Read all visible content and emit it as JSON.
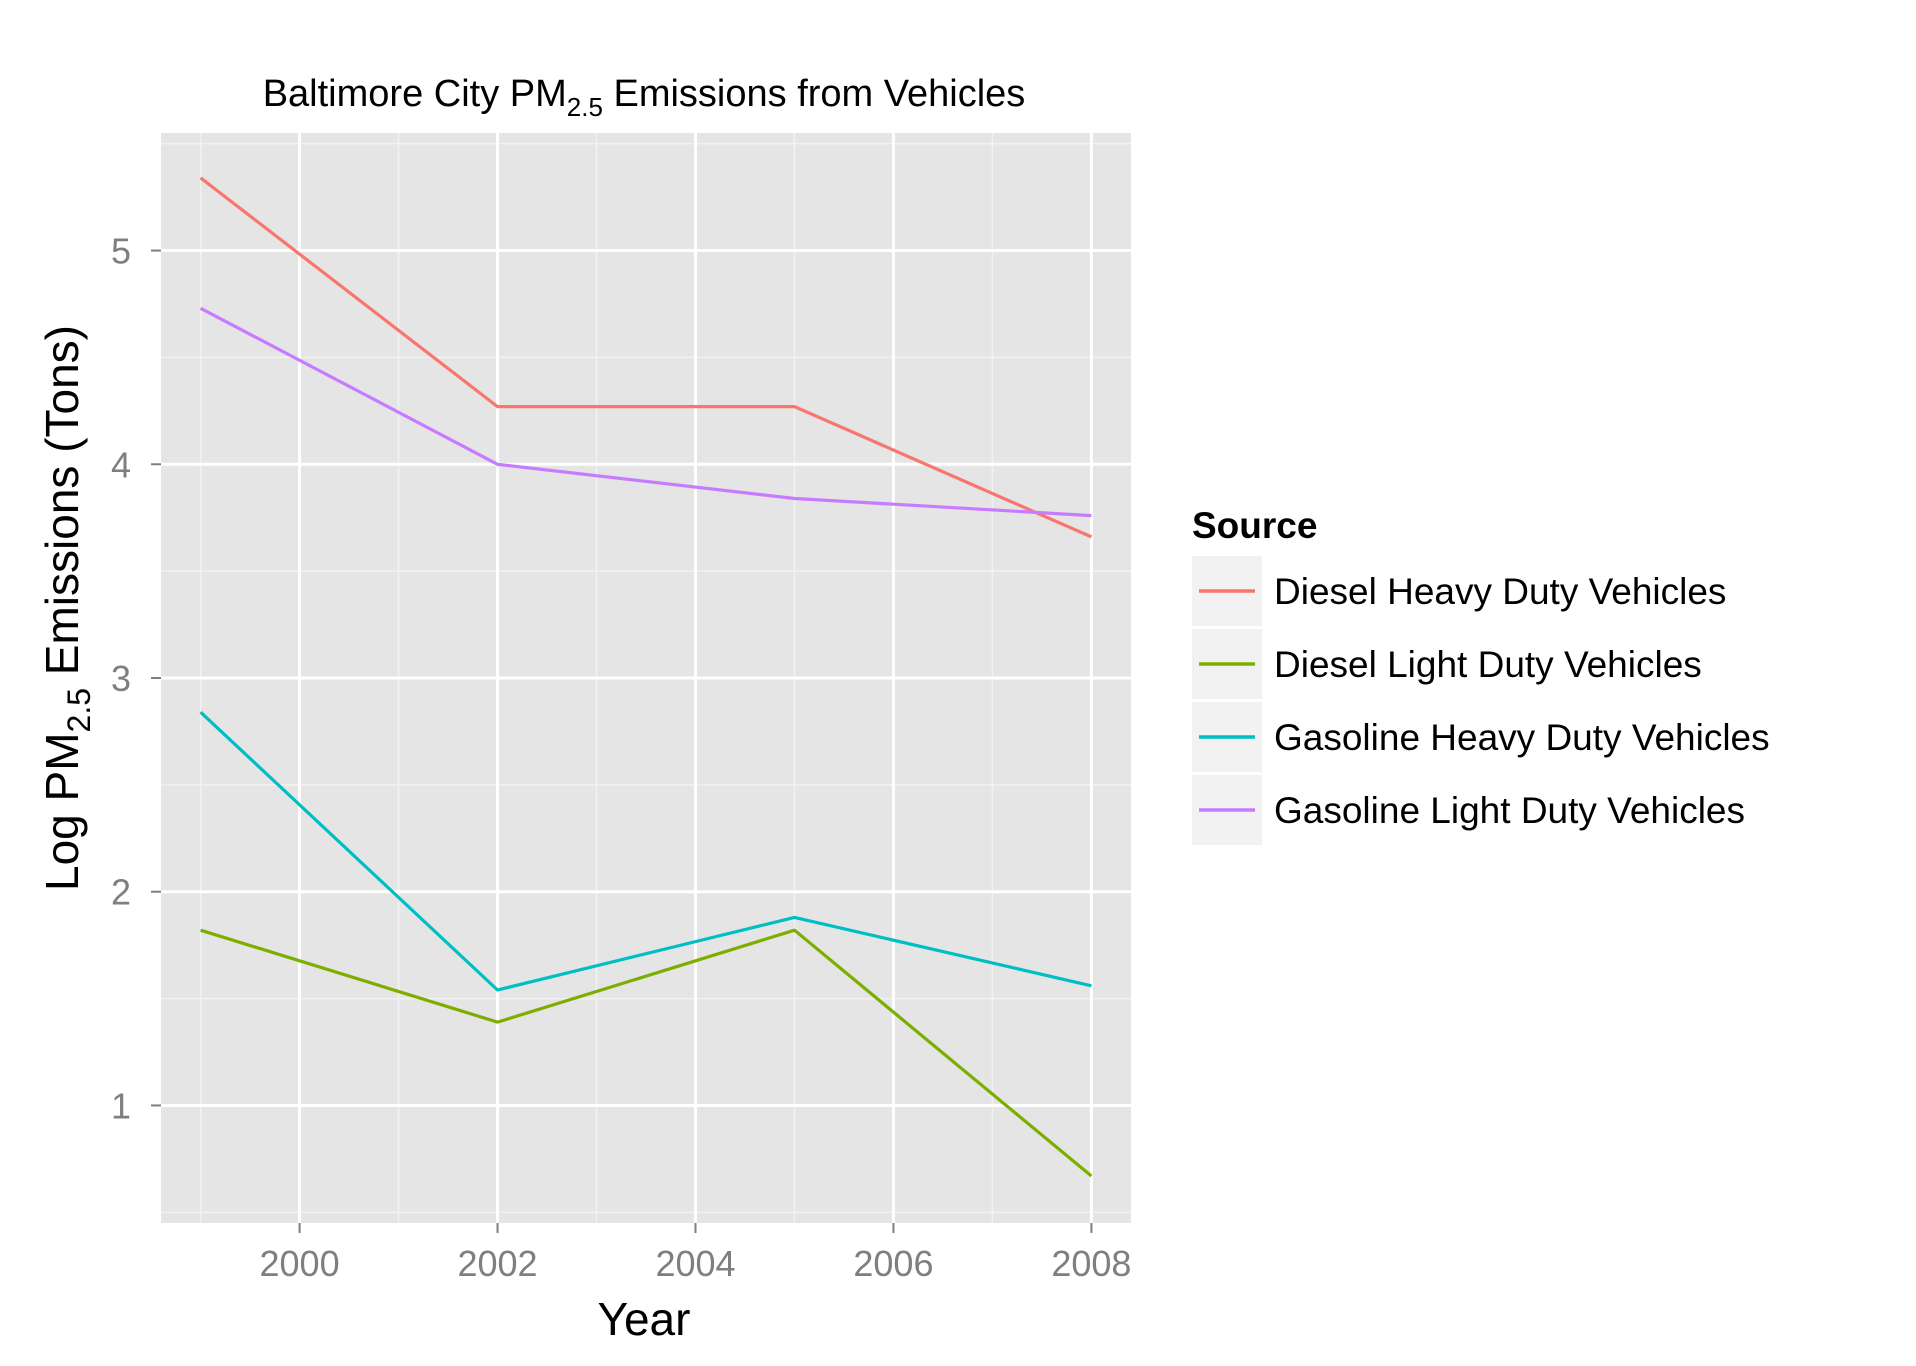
{
  "chart_data": {
    "type": "line",
    "title": {
      "prefix": "Baltimore City PM",
      "subscript": "2.5",
      "suffix": " Emissions from Vehicles"
    },
    "xlabel": "Year",
    "ylabel": {
      "prefix": "Log PM",
      "subscript": "2.5",
      "suffix": " Emissions (Tons)"
    },
    "x": [
      1999,
      2002,
      2005,
      2008
    ],
    "xlim": [
      1998.6,
      2008.4
    ],
    "ylim": [
      0.45,
      5.55
    ],
    "x_ticks": [
      2000,
      2002,
      2004,
      2006,
      2008
    ],
    "x_tick_labels": [
      "2000",
      "2002",
      "2004",
      "2006",
      "2008"
    ],
    "y_ticks": [
      1,
      2,
      3,
      4,
      5
    ],
    "y_tick_labels": [
      "1",
      "2",
      "3",
      "4",
      "5"
    ],
    "grid": true,
    "legend": {
      "title": "Source",
      "position": "right"
    },
    "colors": {
      "panel_background": "#e5e5e5",
      "grid_major": "#ffffff",
      "grid_minor": "#f2f2f2",
      "legend_key_background": "#f2f2f2"
    },
    "series": [
      {
        "name": "Diesel Heavy Duty Vehicles",
        "color": "#f8766d",
        "values": [
          5.34,
          4.27,
          4.27,
          3.66
        ]
      },
      {
        "name": "Diesel Light Duty Vehicles",
        "color": "#7cae00",
        "values": [
          1.82,
          1.39,
          1.82,
          0.67
        ]
      },
      {
        "name": "Gasoline Heavy Duty Vehicles",
        "color": "#00bfc4",
        "values": [
          2.84,
          1.54,
          1.88,
          1.56
        ]
      },
      {
        "name": "Gasoline Light Duty Vehicles",
        "color": "#c77cff",
        "values": [
          4.73,
          4.0,
          3.84,
          3.76
        ]
      }
    ]
  }
}
